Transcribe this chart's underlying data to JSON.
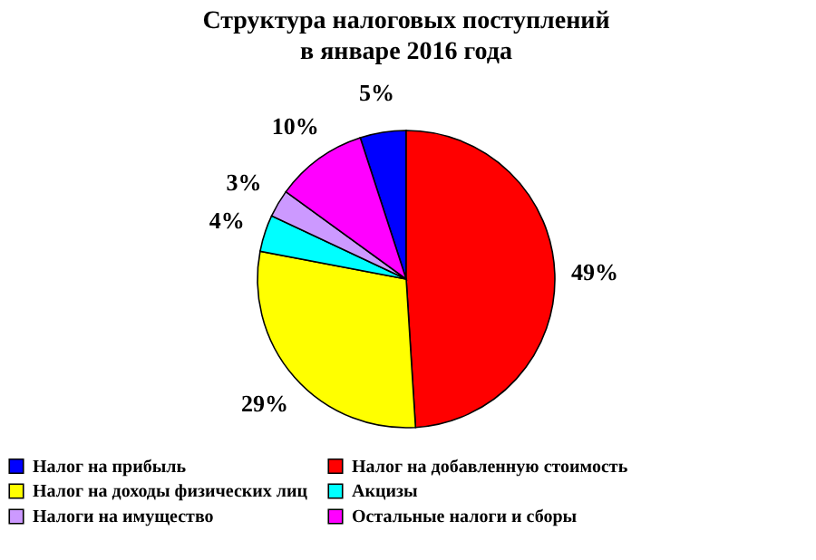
{
  "chart_data": {
    "type": "pie",
    "title": "Структура налоговых поступлений\nв январе 2016 года",
    "categories": [
      "Налог  на прибыль",
      "Налог на добавленную стоимость",
      "Налог на доходы  физических лиц",
      "Акцизы",
      "Налоги на имущество",
      "Остальные налоги и сборы"
    ],
    "values": [
      5,
      49,
      29,
      4,
      3,
      10
    ],
    "value_labels": [
      "5%",
      "49%",
      "29%",
      "4%",
      "3%",
      "10%"
    ],
    "colors": [
      "#0000ff",
      "#ff0000",
      "#ffff00",
      "#00ffff",
      "#cc99ff",
      "#ff00ff"
    ],
    "legend": "bottom"
  }
}
